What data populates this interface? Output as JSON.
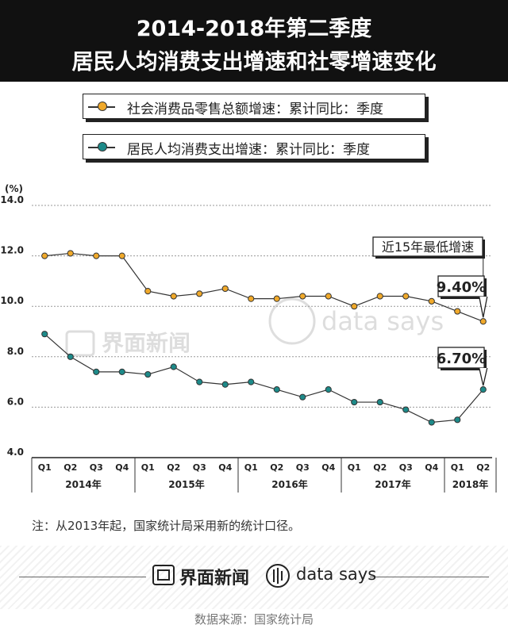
{
  "header": {
    "title_line1": "2014-2018年第二季度",
    "title_line2": "居民人均消费支出增速和社零增速变化"
  },
  "legend": {
    "retail": "社会消费品零售总额增速：累计同比：季度",
    "consumption": "居民人均消费支出增速：累计同比：季度"
  },
  "note": "注：从2013年起，国家统计局采用新的统计口径。",
  "footer": {
    "brand_jiemian": "界面新闻",
    "brand_datasays": "data says",
    "watermark_jiemian": "界面新闻",
    "watermark_datasays": "data says",
    "source": "数据来源：国家统计局"
  },
  "colors": {
    "retail": "#f0a92a",
    "consumption": "#1d8a89",
    "header_bg": "#111111"
  },
  "chart_data": {
    "type": "line",
    "ylabel": "(%)",
    "ylim": [
      4.0,
      14.0
    ],
    "yticks": [
      "4.0",
      "6.0",
      "8.0",
      "10.0",
      "12.0",
      "14.0"
    ],
    "grid": true,
    "categories": [
      "Q1",
      "Q2",
      "Q3",
      "Q4",
      "Q1",
      "Q2",
      "Q3",
      "Q4",
      "Q1",
      "Q2",
      "Q3",
      "Q4",
      "Q1",
      "Q2",
      "Q3",
      "Q4",
      "Q1",
      "Q2"
    ],
    "year_labels": [
      "2014年",
      "2015年",
      "2016年",
      "2017年",
      "2018年"
    ],
    "year_spans": [
      [
        0,
        3
      ],
      [
        4,
        7
      ],
      [
        8,
        11
      ],
      [
        12,
        15
      ],
      [
        16,
        17
      ]
    ],
    "series": [
      {
        "name": "社会消费品零售总额增速：累计同比：季度",
        "color": "#f0a92a",
        "values": [
          12.0,
          12.1,
          12.0,
          12.0,
          10.6,
          10.4,
          10.5,
          10.7,
          10.3,
          10.3,
          10.4,
          10.4,
          10.0,
          10.4,
          10.4,
          10.2,
          9.8,
          9.4
        ]
      },
      {
        "name": "居民人均消费支出增速：累计同比：季度",
        "color": "#1d8a89",
        "values": [
          8.9,
          8.0,
          7.4,
          7.4,
          7.3,
          7.6,
          7.0,
          6.9,
          7.0,
          6.7,
          6.4,
          6.7,
          6.2,
          6.2,
          5.9,
          5.4,
          5.5,
          6.7
        ]
      }
    ],
    "annotations": [
      {
        "text": "近15年最低增速",
        "series": 0,
        "index": 17
      },
      {
        "text": "9.40%",
        "series": 0,
        "index": 17
      },
      {
        "text": "6.70%",
        "series": 1,
        "index": 17
      }
    ]
  }
}
